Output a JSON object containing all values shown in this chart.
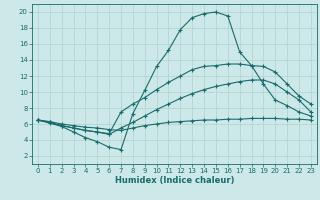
{
  "xlabel": "Humidex (Indice chaleur)",
  "xlim": [
    -0.5,
    23.5
  ],
  "ylim": [
    1,
    21
  ],
  "yticks": [
    2,
    4,
    6,
    8,
    10,
    12,
    14,
    16,
    18,
    20
  ],
  "xticks": [
    0,
    1,
    2,
    3,
    4,
    5,
    6,
    7,
    8,
    9,
    10,
    11,
    12,
    13,
    14,
    15,
    16,
    17,
    18,
    19,
    20,
    21,
    22,
    23
  ],
  "bg_color": "#cce8e8",
  "line_color": "#1a6b6b",
  "grid_color": "#b0d0d0",
  "lines": [
    {
      "x": [
        0,
        1,
        2,
        3,
        4,
        5,
        6,
        7,
        8,
        9,
        10,
        11,
        12,
        13,
        14,
        15,
        16,
        17,
        18,
        19,
        20,
        21,
        22,
        23
      ],
      "y": [
        6.5,
        6.1,
        5.7,
        5.0,
        4.3,
        3.8,
        3.1,
        2.8,
        7.3,
        10.2,
        13.2,
        15.2,
        17.8,
        19.3,
        19.8,
        20.0,
        19.5,
        15.0,
        13.3,
        11.0,
        9.0,
        8.3,
        7.5,
        7.0
      ]
    },
    {
      "x": [
        0,
        1,
        2,
        3,
        4,
        5,
        6,
        7,
        8,
        9,
        10,
        11,
        12,
        13,
        14,
        15,
        16,
        17,
        18,
        19,
        20,
        21,
        22,
        23
      ],
      "y": [
        6.5,
        6.2,
        5.8,
        5.5,
        5.2,
        5.0,
        4.8,
        7.5,
        8.5,
        9.3,
        10.3,
        11.2,
        12.0,
        12.8,
        13.2,
        13.3,
        13.5,
        13.5,
        13.3,
        13.2,
        12.5,
        11.0,
        9.5,
        8.5
      ]
    },
    {
      "x": [
        0,
        1,
        2,
        3,
        4,
        5,
        6,
        7,
        8,
        9,
        10,
        11,
        12,
        13,
        14,
        15,
        16,
        17,
        18,
        19,
        20,
        21,
        22,
        23
      ],
      "y": [
        6.5,
        6.2,
        5.8,
        5.5,
        5.2,
        5.0,
        4.7,
        5.5,
        6.2,
        7.0,
        7.8,
        8.5,
        9.2,
        9.8,
        10.3,
        10.7,
        11.0,
        11.3,
        11.5,
        11.5,
        11.0,
        10.0,
        9.0,
        7.5
      ]
    },
    {
      "x": [
        0,
        1,
        2,
        3,
        4,
        5,
        6,
        7,
        8,
        9,
        10,
        11,
        12,
        13,
        14,
        15,
        16,
        17,
        18,
        19,
        20,
        21,
        22,
        23
      ],
      "y": [
        6.5,
        6.3,
        6.0,
        5.8,
        5.6,
        5.5,
        5.3,
        5.2,
        5.5,
        5.8,
        6.0,
        6.2,
        6.3,
        6.4,
        6.5,
        6.5,
        6.6,
        6.6,
        6.7,
        6.7,
        6.7,
        6.6,
        6.6,
        6.5
      ]
    }
  ]
}
